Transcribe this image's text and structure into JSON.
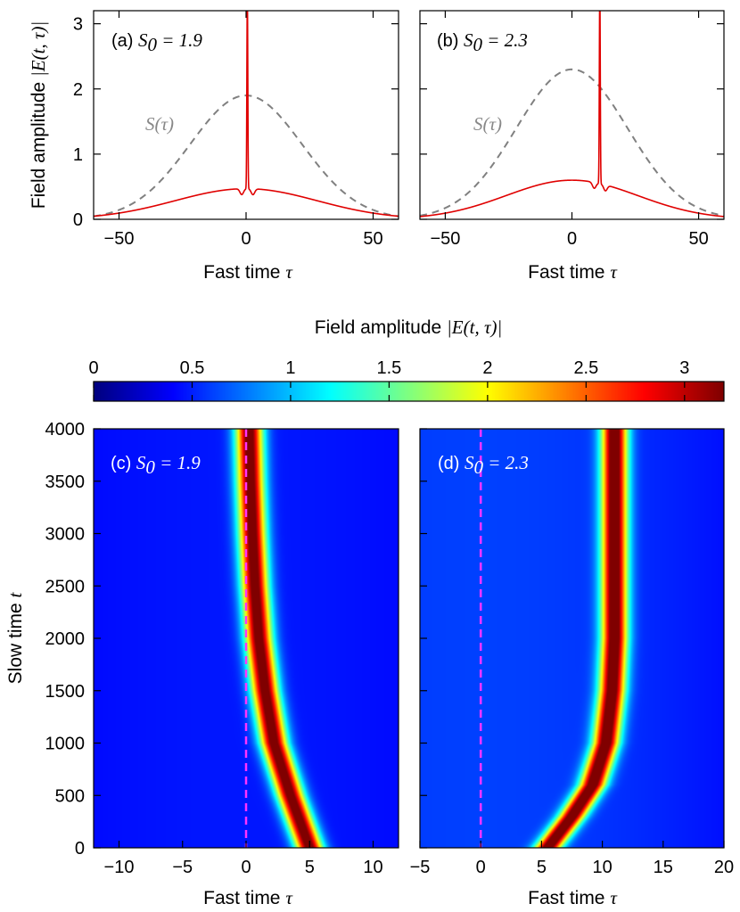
{
  "colorbar": {
    "label": "Field amplitude |E(t,τ)|",
    "ticks": [
      0,
      0.5,
      1,
      1.5,
      2,
      2.5,
      3
    ],
    "range": [
      0,
      3.2
    ],
    "colormap": "jet"
  },
  "chart_data": [
    {
      "id": "a",
      "type": "line",
      "panel_label": "(a) S₀ = 1.9",
      "xlabel": "Fast time τ",
      "ylabel": "Field amplitude |E(t,τ)|",
      "xlim": [
        -60,
        60
      ],
      "ylim": [
        0,
        3.2
      ],
      "xticks": [
        -50,
        0,
        50
      ],
      "yticks": [
        0,
        1,
        2,
        3
      ],
      "annotation": "S(τ)",
      "series": [
        {
          "key": "pump",
          "style": "dashed",
          "color": "#808080",
          "peak": 1.9,
          "center": 0,
          "width": 22
        },
        {
          "key": "field",
          "style": "solid",
          "color": "#e00000",
          "cw_peak": 0.47,
          "cw_center": 0,
          "cw_width": 28,
          "spike_position": 0.5,
          "spike_height": 2.93
        }
      ]
    },
    {
      "id": "b",
      "type": "line",
      "panel_label": "(b) S₀ = 2.3",
      "xlabel": "Fast time τ",
      "xlim": [
        -60,
        60
      ],
      "ylim": [
        0,
        3.2
      ],
      "xticks": [
        -50,
        0,
        50
      ],
      "yticks": [
        0,
        1,
        2,
        3
      ],
      "annotation": "S(τ)",
      "series": [
        {
          "key": "pump",
          "style": "dashed",
          "color": "#808080",
          "peak": 2.3,
          "center": 0,
          "width": 22
        },
        {
          "key": "field",
          "style": "solid",
          "color": "#e00000",
          "cw_peak": 0.6,
          "cw_center": 0,
          "cw_width": 26,
          "spike_position": 11,
          "spike_height": 2.97
        }
      ]
    },
    {
      "id": "c",
      "type": "heatmap",
      "panel_label": "(c) S₀ = 1.9",
      "xlabel": "Fast time τ",
      "ylabel": "Slow time t",
      "xlim": [
        -12,
        12
      ],
      "ylim": [
        0,
        4000
      ],
      "xticks": [
        -10,
        -5,
        0,
        5,
        10
      ],
      "yticks": [
        0,
        500,
        1000,
        1500,
        2000,
        2500,
        3000,
        3500,
        4000
      ],
      "reference_line_x": 0,
      "soliton_track": [
        [
          5,
          0
        ],
        [
          3.5,
          500
        ],
        [
          2.2,
          1000
        ],
        [
          1.5,
          1500
        ],
        [
          1.0,
          2000
        ],
        [
          0.7,
          2500
        ],
        [
          0.5,
          3000
        ],
        [
          0.35,
          3500
        ],
        [
          0.25,
          4000
        ]
      ],
      "soliton_peak": 2.93,
      "soliton_width": 0.75,
      "background": {
        "peak": 0.47,
        "width": 28
      }
    },
    {
      "id": "d",
      "type": "heatmap",
      "panel_label": "(d) S₀ = 2.3",
      "xlabel": "Fast time τ",
      "xlim": [
        -5,
        20
      ],
      "ylim": [
        0,
        4000
      ],
      "xticks": [
        -5,
        0,
        5,
        10,
        15,
        20
      ],
      "yticks": [
        0,
        500,
        1000,
        1500,
        2000,
        2500,
        3000,
        3500,
        4000
      ],
      "reference_line_x": 0,
      "soliton_track": [
        [
          5.5,
          0
        ],
        [
          7.5,
          300
        ],
        [
          9.2,
          600
        ],
        [
          10.3,
          1000
        ],
        [
          10.8,
          1500
        ],
        [
          11,
          2000
        ],
        [
          11,
          4000
        ]
      ],
      "soliton_peak": 2.97,
      "soliton_width": 0.75,
      "background": {
        "peak": 0.6,
        "width": 26
      }
    }
  ]
}
